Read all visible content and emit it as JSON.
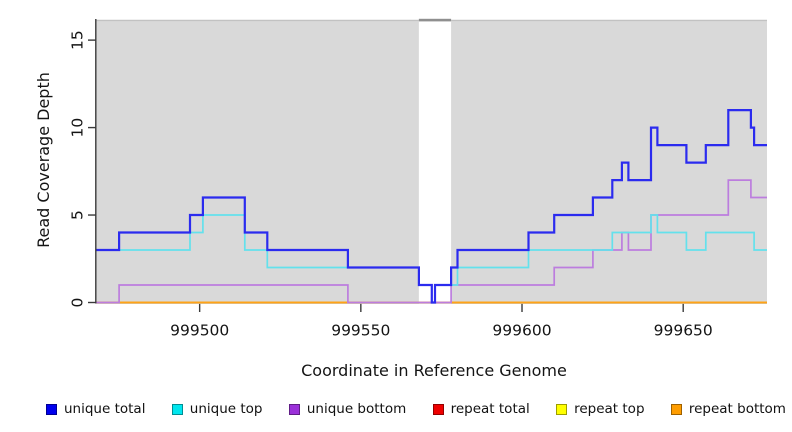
{
  "chart_data": {
    "type": "line",
    "subtype": "step",
    "title": "",
    "xlabel": "Coordinate in Reference Genome",
    "ylabel": "Read Coverage Depth",
    "xlim": [
      999468,
      999676
    ],
    "ylim": [
      0,
      16.15
    ],
    "xticks": [
      999500,
      999550,
      999600,
      999650
    ],
    "yticks": [
      0,
      5,
      10,
      15
    ],
    "grid": false,
    "legend_position": "bottom",
    "panel_background": "#D9D9D9",
    "panel_edge_color": "#C2C2C2",
    "gap_region": {
      "x0": 999568,
      "x1": 999578,
      "fill": "#FFFFFF",
      "cap_color": "#8F8F8F"
    },
    "axis_color": "#3A3A3A",
    "tick_label_color": "#141414",
    "series": [
      {
        "name": "unique total",
        "color": "#2B2BEF",
        "legend_color": "#0000EE",
        "width": 2.2,
        "points": [
          [
            999468,
            3
          ],
          [
            999475,
            4
          ],
          [
            999497,
            5
          ],
          [
            999501,
            6
          ],
          [
            999514,
            4
          ],
          [
            999521,
            3
          ],
          [
            999546,
            2
          ],
          [
            999568,
            1
          ],
          [
            999572,
            0
          ],
          [
            999573,
            1
          ],
          [
            999578,
            2
          ],
          [
            999580,
            3
          ],
          [
            999602,
            4
          ],
          [
            999610,
            5
          ],
          [
            999622,
            6
          ],
          [
            999628,
            7
          ],
          [
            999631,
            8
          ],
          [
            999633,
            7
          ],
          [
            999640,
            10
          ],
          [
            999642,
            9
          ],
          [
            999651,
            8
          ],
          [
            999657,
            9
          ],
          [
            999664,
            11
          ],
          [
            999671,
            10
          ],
          [
            999672,
            9
          ]
        ]
      },
      {
        "name": "unique top",
        "color": "#63E1EC",
        "legend_color": "#00E6EE",
        "width": 1.7,
        "points": [
          [
            999468,
            3
          ],
          [
            999497,
            4
          ],
          [
            999501,
            5
          ],
          [
            999514,
            3
          ],
          [
            999521,
            2
          ],
          [
            999568,
            1
          ],
          [
            999572,
            0
          ],
          [
            999573,
            1
          ],
          [
            999580,
            2
          ],
          [
            999602,
            3
          ],
          [
            999628,
            4
          ],
          [
            999640,
            5
          ],
          [
            999642,
            4
          ],
          [
            999651,
            3
          ],
          [
            999657,
            4
          ],
          [
            999672,
            3
          ]
        ]
      },
      {
        "name": "unique bottom",
        "color": "#BC7DDE",
        "legend_color": "#9B30D9",
        "width": 1.7,
        "points": [
          [
            999468,
            0
          ],
          [
            999475,
            1
          ],
          [
            999546,
            0
          ],
          [
            999578,
            1
          ],
          [
            999610,
            2
          ],
          [
            999622,
            3
          ],
          [
            999631,
            4
          ],
          [
            999633,
            3
          ],
          [
            999640,
            5
          ],
          [
            999664,
            7
          ],
          [
            999671,
            6
          ]
        ]
      },
      {
        "name": "repeat total",
        "color": "#E00000",
        "legend_color": "#EE0000",
        "width": 1.5,
        "points": [
          [
            999468,
            0
          ]
        ]
      },
      {
        "name": "repeat top",
        "color": "#FFEB00",
        "legend_color": "#FFFF00",
        "width": 1.5,
        "points": [
          [
            999468,
            0
          ]
        ]
      },
      {
        "name": "repeat bottom",
        "color": "#FFA317",
        "legend_color": "#FF9D00",
        "width": 1.8,
        "points": [
          [
            999468,
            0
          ]
        ]
      }
    ],
    "draw_order": [
      "repeat total",
      "repeat top",
      "repeat bottom",
      "unique bottom",
      "unique top",
      "unique total"
    ]
  }
}
